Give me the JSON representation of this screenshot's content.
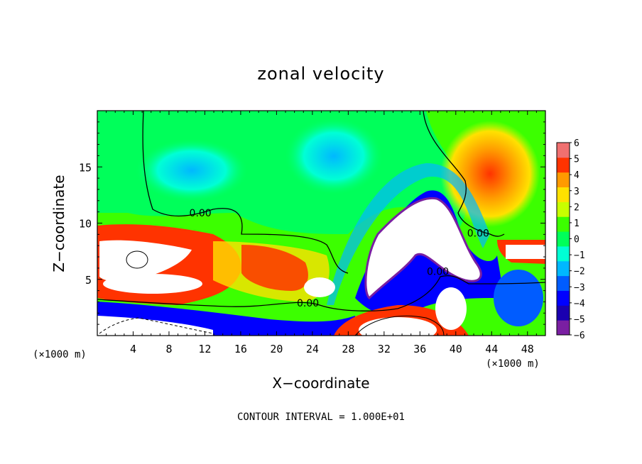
{
  "chart_data": {
    "type": "heatmap",
    "title": "zonal velocity",
    "xlabel": "X−coordinate",
    "ylabel": "Z−coordinate",
    "x_unit_left": "(×1000 m)",
    "x_unit_right": "(×1000 m)",
    "xlim": [
      0,
      50
    ],
    "ylim": [
      0,
      20
    ],
    "x_ticks": [
      4,
      8,
      12,
      16,
      20,
      24,
      28,
      32,
      36,
      40,
      44,
      48
    ],
    "y_ticks": [
      5,
      10,
      15
    ],
    "colorbar": {
      "min": -6,
      "max": 6,
      "ticks": [
        6,
        5,
        4,
        3,
        2,
        1,
        0,
        -1,
        -2,
        -3,
        -4,
        -5,
        -6
      ],
      "tick_labels": [
        "6",
        "5",
        "4",
        "3",
        "2",
        "1",
        "0",
        "−1",
        "−2",
        "−3",
        "−4",
        "−5",
        "−6"
      ],
      "colors": [
        "#7a1fa2",
        "#1a00b0",
        "#0000ff",
        "#005cff",
        "#00b8ff",
        "#00ffd5",
        "#00ff5a",
        "#3cff00",
        "#c8ff00",
        "#ffe100",
        "#ff9a00",
        "#ff3300",
        "#f07070"
      ]
    },
    "contour_label": "0.00",
    "contour_label_positions": [
      [
        11.5,
        10.6
      ],
      [
        23.5,
        2.6
      ],
      [
        38,
        5.4
      ],
      [
        42.5,
        8.8
      ]
    ],
    "footer": "CONTOUR INTERVAL = 1.000E+01"
  }
}
